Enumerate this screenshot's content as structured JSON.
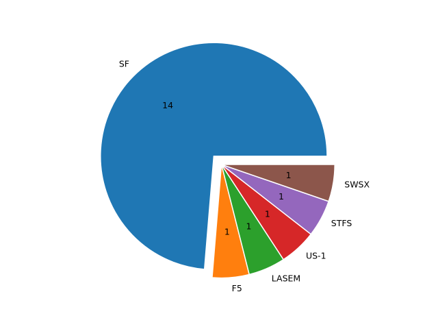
{
  "chart_data": {
    "type": "pie",
    "labels": [
      "SF",
      "F5",
      "LASEM",
      "US-1",
      "STFS",
      "SWSX"
    ],
    "values": [
      14,
      1,
      1,
      1,
      1,
      1
    ],
    "value_labels": [
      "14",
      "1",
      "1",
      "1",
      "1",
      "1"
    ],
    "explode": [
      0.1,
      0,
      0,
      0,
      0,
      0
    ],
    "start_angle": 0,
    "direction": "counterclockwise",
    "colors": [
      "#1f77b4",
      "#ff7f0e",
      "#2ca02c",
      "#d62728",
      "#9467bd",
      "#8c564b"
    ],
    "title": "",
    "legend": "none"
  }
}
